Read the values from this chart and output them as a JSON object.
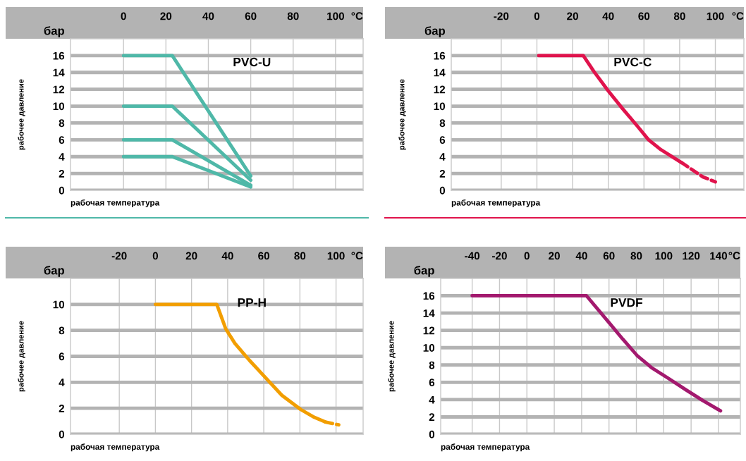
{
  "chart_data": [
    {
      "type": "line",
      "title": "PVC-U",
      "xlabel": "рабочая температура",
      "ylabel": "рабочее давление",
      "annotations": [
        "бар",
        "°C"
      ],
      "xlim": [
        -25,
        113
      ],
      "xticks": [
        0,
        20,
        40,
        60,
        80,
        100
      ],
      "ylim": [
        0,
        18
      ],
      "yticks": [
        0,
        2,
        4,
        6,
        8,
        10,
        12,
        14,
        16
      ],
      "grid": true,
      "series": [
        {
          "color": "#4fb8a8",
          "x": [
            0,
            23,
            60
          ],
          "values": [
            16,
            16,
            1.7
          ]
        },
        {
          "color": "#4fb8a8",
          "x": [
            0,
            23,
            60
          ],
          "values": [
            10,
            10,
            1.2
          ]
        },
        {
          "color": "#4fb8a8",
          "x": [
            0,
            23,
            60
          ],
          "values": [
            6,
            6,
            0.6
          ]
        },
        {
          "color": "#4fb8a8",
          "x": [
            0,
            23,
            60
          ],
          "values": [
            4,
            4,
            0.4
          ]
        }
      ]
    },
    {
      "type": "line",
      "title": "PVC-C",
      "xlabel": "рабочая температура",
      "ylabel": "рабочее давление",
      "annotations": [
        "бар",
        "°C"
      ],
      "xlim": [
        -48,
        116
      ],
      "xticks": [
        -20,
        0,
        20,
        40,
        60,
        80,
        100
      ],
      "ylim": [
        0,
        18
      ],
      "yticks": [
        0,
        2,
        4,
        6,
        8,
        10,
        12,
        14,
        16
      ],
      "grid": true,
      "series": [
        {
          "color": "#e0134c",
          "x": [
            1,
            26,
            32,
            40,
            48,
            56,
            62.6,
            69,
            81
          ],
          "values": [
            16,
            16,
            14.1,
            11.8,
            9.7,
            7.7,
            6.0,
            4.9,
            3.3
          ]
        },
        {
          "color": "#e0134c",
          "line_style": "dashed",
          "x": [
            81,
            93,
            100
          ],
          "values": [
            3.3,
            1.6,
            1.0
          ]
        }
      ]
    },
    {
      "type": "line",
      "title": "PP-H",
      "xlabel": "рабочая температура",
      "ylabel": "рабочее давление",
      "annotations": [
        "бар",
        "°C"
      ],
      "xlim": [
        -47,
        115
      ],
      "xticks": [
        -20,
        0,
        20,
        40,
        60,
        80,
        100
      ],
      "ylim": [
        0,
        12
      ],
      "yticks": [
        0,
        2,
        4,
        6,
        8,
        10
      ],
      "grid": true,
      "series": [
        {
          "color": "#f29e00",
          "x": [
            0,
            34,
            39,
            44,
            52,
            60,
            70,
            80.5,
            88,
            94
          ],
          "values": [
            10,
            10,
            8.1,
            7.0,
            5.7,
            4.5,
            3.0,
            1.9,
            1.3,
            0.95
          ]
        },
        {
          "color": "#f29e00",
          "line_style": "dashed",
          "x": [
            94,
            101.5
          ],
          "values": [
            0.95,
            0.72
          ]
        }
      ]
    },
    {
      "type": "line",
      "title": "PVDF",
      "xlabel": "рабочая температура",
      "ylabel": "рабочее давление",
      "annotations": [
        "бар",
        "°C"
      ],
      "xlim": [
        -63,
        156
      ],
      "xticks": [
        -40,
        -20,
        0,
        20,
        40,
        60,
        80,
        100,
        120,
        140
      ],
      "ylim": [
        0,
        18
      ],
      "yticks": [
        0,
        2,
        4,
        6,
        8,
        10,
        12,
        14,
        16
      ],
      "grid": true,
      "series": [
        {
          "color": "#a3196e",
          "x": [
            -40,
            43.5,
            60,
            70,
            80.5,
            91,
            103,
            116.5,
            128.5,
            141.5
          ],
          "values": [
            16,
            16,
            12.9,
            11.0,
            9.1,
            7.7,
            6.5,
            5.1,
            3.9,
            2.7
          ]
        }
      ]
    }
  ]
}
